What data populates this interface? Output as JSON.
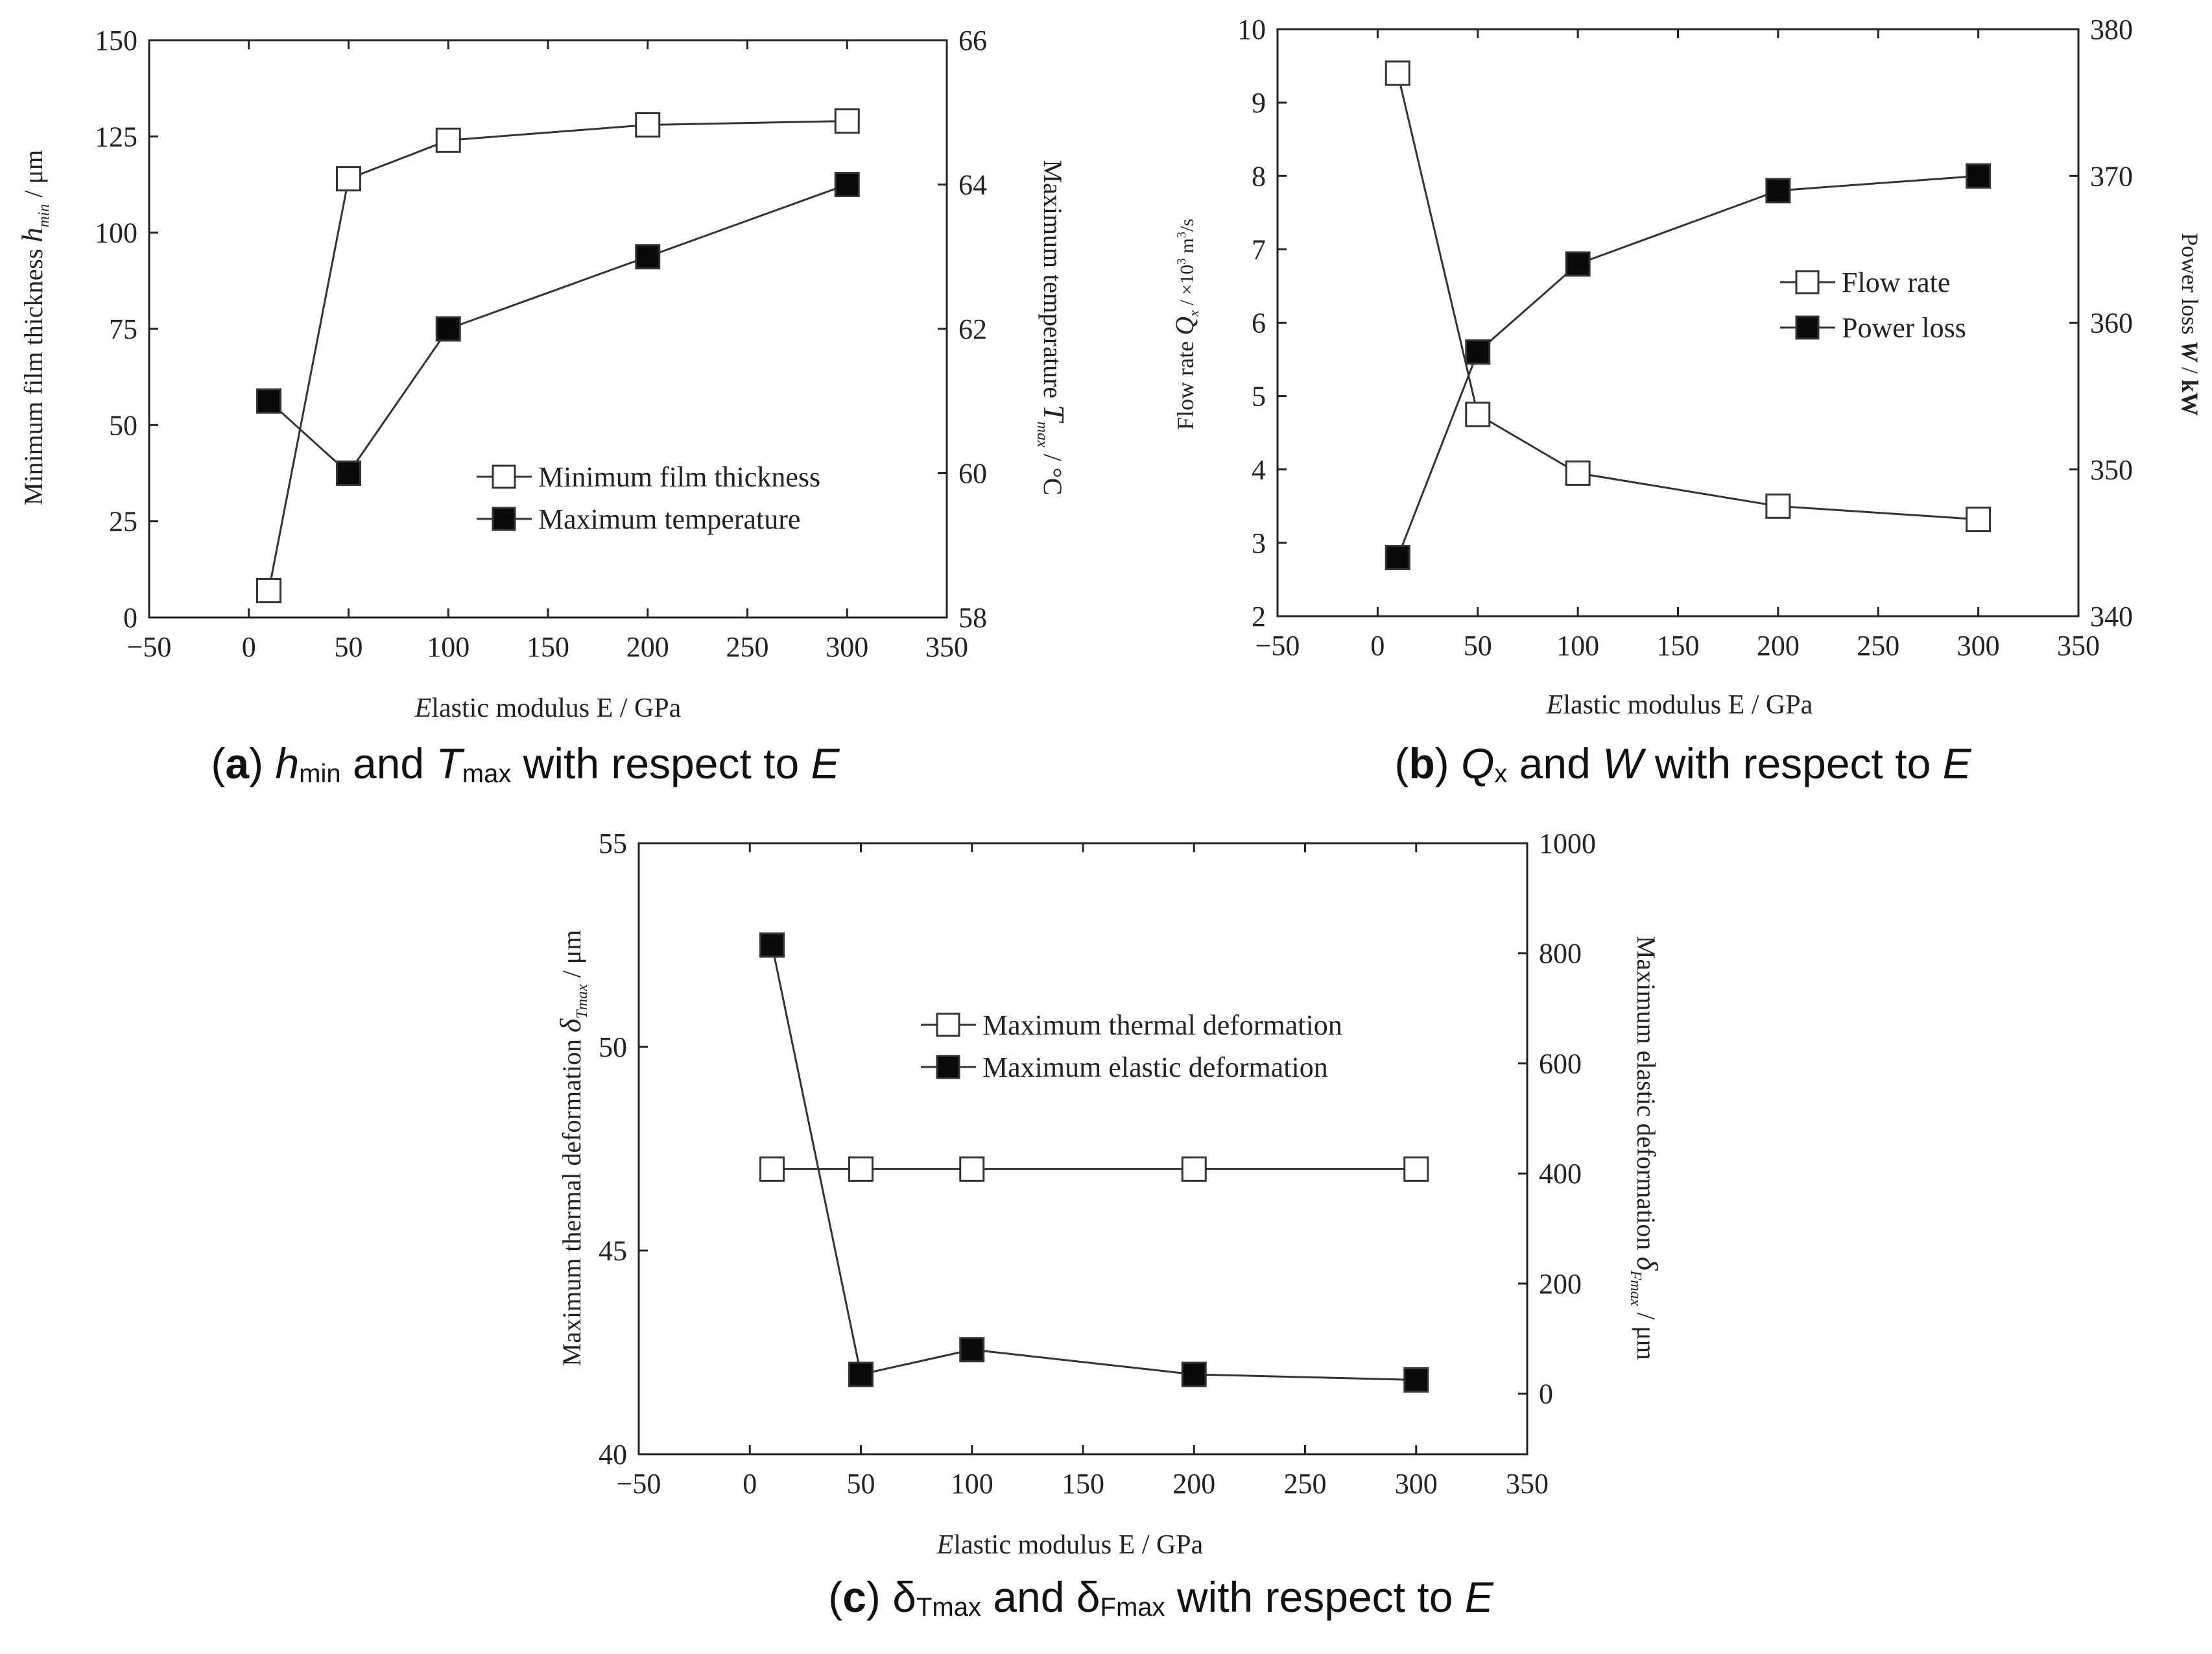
{
  "chart_data": [
    {
      "id": "a",
      "type": "line",
      "xlabel": "Elastic modulus E / GPa",
      "xlim": [
        -50,
        350
      ],
      "xticks": [
        -50,
        0,
        50,
        100,
        150,
        200,
        250,
        300,
        350
      ],
      "ylabel_left": "Minimum film thickness h_min / μm",
      "ylim_left": [
        0,
        150
      ],
      "yticks_left": [
        0,
        25,
        50,
        75,
        100,
        125,
        150
      ],
      "ylabel_right": "Maximum temperature T_max / °C",
      "ylim_right": [
        58,
        66
      ],
      "yticks_right": [
        58,
        60,
        62,
        64,
        66
      ],
      "series": [
        {
          "name": "Minimum film thickness",
          "marker": "open-square",
          "axis": "left",
          "x": [
            10,
            50,
            100,
            200,
            300
          ],
          "values": [
            7,
            114,
            124,
            128,
            129
          ]
        },
        {
          "name": "Maximum temperature",
          "marker": "filled-square",
          "axis": "right",
          "x": [
            10,
            50,
            100,
            200,
            300
          ],
          "values": [
            61.0,
            60.0,
            62.0,
            63.0,
            64.0
          ]
        }
      ],
      "legend": "center-right",
      "caption": {
        "label": "a",
        "parts": [
          {
            "t": "h",
            "s": "italic"
          },
          {
            "t": "min",
            "s": "sub"
          },
          {
            "t": " and ",
            "s": "normal"
          },
          {
            "t": "T",
            "s": "italic"
          },
          {
            "t": "max",
            "s": "sub"
          },
          {
            "t": " with respect to ",
            "s": "normal"
          },
          {
            "t": "E",
            "s": "italic"
          }
        ]
      }
    },
    {
      "id": "b",
      "type": "line",
      "xlabel": "Elastic modulus E / GPa",
      "xlim": [
        -50,
        350
      ],
      "xticks": [
        -50,
        0,
        50,
        100,
        150,
        200,
        250,
        300,
        350
      ],
      "ylabel_left": "Flow rate Q_x / ×10^3 m^3/s",
      "ylim_left": [
        2,
        10
      ],
      "yticks_left": [
        2,
        3,
        4,
        5,
        6,
        7,
        8,
        9,
        10
      ],
      "ylabel_right": "Power loss W / kW",
      "ylim_right": [
        340,
        380
      ],
      "yticks_right": [
        340,
        350,
        360,
        370,
        380
      ],
      "series": [
        {
          "name": "Flow rate",
          "marker": "open-square",
          "axis": "left",
          "x": [
            10,
            50,
            100,
            200,
            300
          ],
          "values": [
            9.4,
            4.75,
            3.95,
            3.5,
            3.32
          ]
        },
        {
          "name": "Power loss",
          "marker": "filled-square",
          "axis": "right",
          "x": [
            10,
            50,
            100,
            200,
            300
          ],
          "values": [
            344,
            358,
            364,
            369,
            370
          ]
        }
      ],
      "legend": "upper-right",
      "caption": {
        "label": "b",
        "parts": [
          {
            "t": "Q",
            "s": "italic"
          },
          {
            "t": "x",
            "s": "sub"
          },
          {
            "t": " and ",
            "s": "normal"
          },
          {
            "t": "W",
            "s": "italic"
          },
          {
            "t": " with respect to ",
            "s": "normal"
          },
          {
            "t": "E",
            "s": "italic"
          }
        ]
      }
    },
    {
      "id": "c",
      "type": "line",
      "xlabel": "Elastic modulus E / GPa",
      "xlim": [
        -50,
        350
      ],
      "xticks": [
        -50,
        0,
        50,
        100,
        150,
        200,
        250,
        300,
        350
      ],
      "ylabel_left": "Maximum thermal deformation δ_Tmax / μm",
      "ylim_left": [
        40,
        55
      ],
      "yticks_left": [
        40,
        45,
        50,
        55
      ],
      "ylabel_right": "Maximum elastic deformation δ_Fmax / μm",
      "ylim_right": [
        -110,
        1000
      ],
      "yticks_right": [
        0,
        200,
        400,
        600,
        800,
        1000
      ],
      "series": [
        {
          "name": "Maximum thermal deformation",
          "marker": "open-square",
          "axis": "left",
          "x": [
            10,
            50,
            100,
            200,
            300
          ],
          "values": [
            47,
            47,
            47,
            47,
            47
          ]
        },
        {
          "name": "Maximum elastic deformation",
          "marker": "filled-square",
          "axis": "right",
          "x": [
            10,
            50,
            100,
            200,
            300
          ],
          "values": [
            815,
            35,
            80,
            35,
            25
          ]
        }
      ],
      "legend": "upper-center",
      "caption": {
        "label": "c",
        "parts": [
          {
            "t": "δ",
            "s": "normal"
          },
          {
            "t": "Tmax",
            "s": "sub"
          },
          {
            "t": " and ",
            "s": "normal"
          },
          {
            "t": "δ",
            "s": "normal"
          },
          {
            "t": "Fmax",
            "s": "sub"
          },
          {
            "t": " with respect to ",
            "s": "normal"
          },
          {
            "t": "E",
            "s": "italic"
          }
        ]
      }
    }
  ]
}
